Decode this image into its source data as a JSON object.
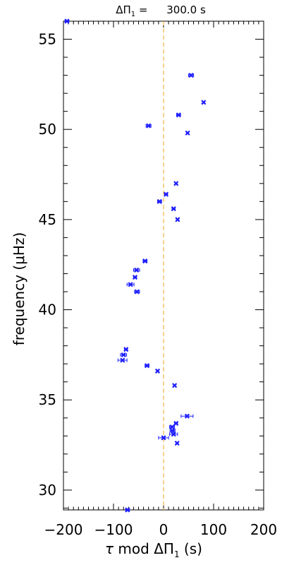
{
  "chart_data": {
    "type": "scatter",
    "title": "ΔΠ₁ = 300.0 s",
    "title_parts": {
      "prefix": "ΔΠ",
      "subscript": "1",
      "eq": " = ",
      "value": "300.0 s"
    },
    "xlabel": "τ mod ΔΠ₁ (s)",
    "xlabel_parts": {
      "tau": "τ",
      "mid": " mod ΔΠ",
      "subscript": "1",
      "suffix": " (s)"
    },
    "ylabel": "frequency (μHz)",
    "xlim": [
      -200,
      200
    ],
    "ylim": [
      28.9,
      56
    ],
    "xticks": [
      -200,
      -100,
      0,
      100,
      200
    ],
    "xtick_labels": [
      "−200",
      "−100",
      "0",
      "100",
      "200"
    ],
    "yticks": [
      30,
      35,
      40,
      45,
      50,
      55
    ],
    "ytick_labels": [
      "30",
      "35",
      "40",
      "45",
      "50",
      "55"
    ],
    "reference_line": {
      "x": 0,
      "style": "dashed",
      "color": "#f5a623"
    },
    "marker_color": "#1f1fff",
    "points": [
      {
        "x": -193,
        "y": 56.0,
        "err": 4
      },
      {
        "x": 55,
        "y": 53.0,
        "err": 5
      },
      {
        "x": 80,
        "y": 51.5,
        "err": 2
      },
      {
        "x": 30,
        "y": 50.8,
        "err": 4
      },
      {
        "x": -30,
        "y": 50.2,
        "err": 5
      },
      {
        "x": 48,
        "y": 49.8,
        "err": 2
      },
      {
        "x": 25,
        "y": 47.0,
        "err": 2
      },
      {
        "x": 5,
        "y": 46.4,
        "err": 3
      },
      {
        "x": -8,
        "y": 46.0,
        "err": 4
      },
      {
        "x": 20,
        "y": 45.6,
        "err": 3
      },
      {
        "x": 28,
        "y": 45.0,
        "err": 2
      },
      {
        "x": -37,
        "y": 42.7,
        "err": 4
      },
      {
        "x": -54,
        "y": 42.2,
        "err": 6
      },
      {
        "x": -57,
        "y": 41.8,
        "err": 3
      },
      {
        "x": -66,
        "y": 41.4,
        "err": 7
      },
      {
        "x": -53,
        "y": 41.0,
        "err": 5
      },
      {
        "x": -75,
        "y": 37.8,
        "err": 3
      },
      {
        "x": -80,
        "y": 37.5,
        "err": 6
      },
      {
        "x": -82,
        "y": 37.2,
        "err": 9
      },
      {
        "x": -33,
        "y": 36.9,
        "err": 4
      },
      {
        "x": -12,
        "y": 36.6,
        "err": 2
      },
      {
        "x": 22,
        "y": 35.8,
        "err": 2
      },
      {
        "x": 47,
        "y": 34.1,
        "err": 12
      },
      {
        "x": 25,
        "y": 33.7,
        "err": 3
      },
      {
        "x": 17,
        "y": 33.5,
        "err": 5
      },
      {
        "x": 18,
        "y": 33.3,
        "err": 5
      },
      {
        "x": 20,
        "y": 33.1,
        "err": 8
      },
      {
        "x": 0,
        "y": 32.9,
        "err": 10
      },
      {
        "x": 27,
        "y": 32.6,
        "err": 2
      },
      {
        "x": -72,
        "y": 28.9,
        "err": 4
      }
    ]
  }
}
